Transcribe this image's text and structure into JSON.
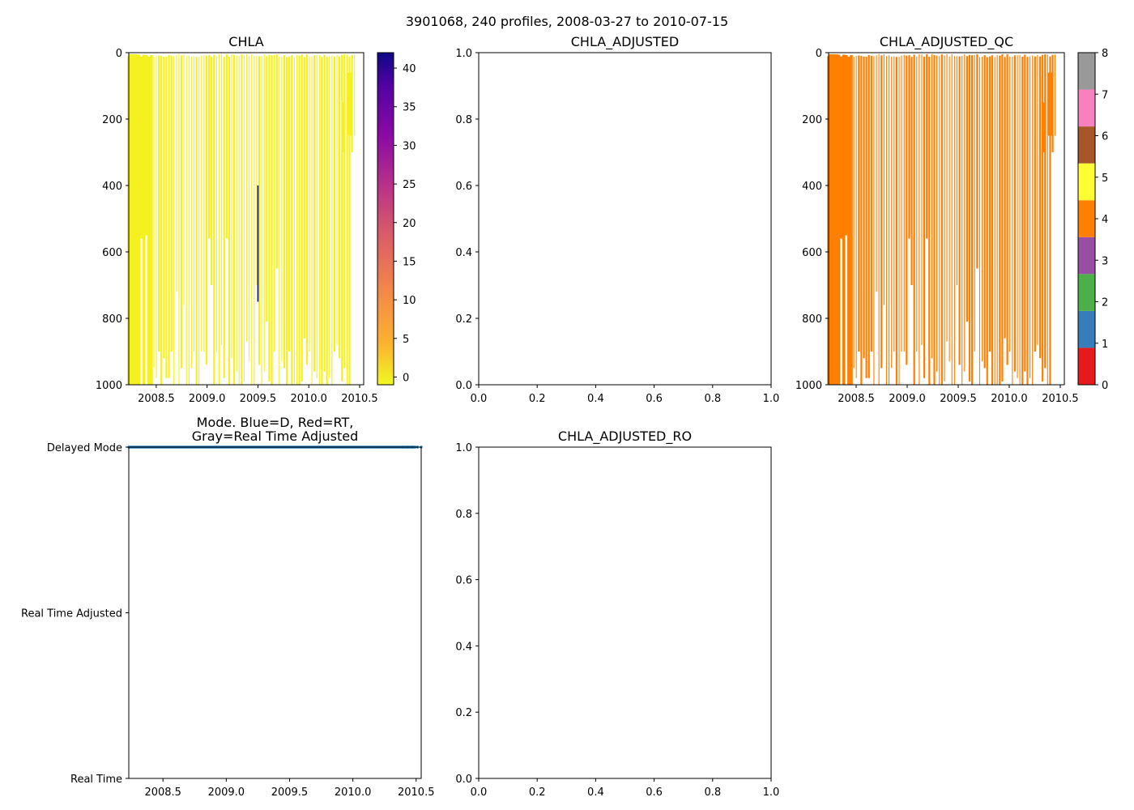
{
  "figure": {
    "suptitle": "3901068, 240 profiles, 2008-03-27 to 2010-07-15"
  },
  "colors": {
    "chla_bar": "#f5f020",
    "chla_anomaly": "#0d0887",
    "qc_bar": "#ff7f00",
    "mode_points": "#1f77b4",
    "axis": "#000000"
  },
  "chart_data": [
    {
      "id": "chla",
      "type": "heatmap",
      "title": "CHLA",
      "xlim": [
        2008.23,
        2010.54
      ],
      "ylim": [
        1000,
        0
      ],
      "xticks": [
        2008.5,
        2009.0,
        2009.5,
        2010.0,
        2010.5
      ],
      "xtick_labels": [
        "2008.5",
        "2009.0",
        "2009.5",
        "2010.0",
        "2010.5"
      ],
      "yticks": [
        0,
        200,
        400,
        600,
        800,
        1000
      ],
      "ytick_labels": [
        "0",
        "200",
        "400",
        "600",
        "800",
        "1000"
      ],
      "colorbar": {
        "min": -1,
        "max": 42,
        "ticks": [
          0,
          5,
          10,
          15,
          20,
          25,
          30,
          35,
          40
        ],
        "tick_labels": [
          "0",
          "5",
          "10",
          "15",
          "20",
          "25",
          "30",
          "35",
          "40"
        ],
        "colormap": "plasma_r"
      },
      "profile_bottoms": [
        1000,
        1000,
        950,
        1000,
        1000,
        560,
        1000,
        550,
        1000,
        1000,
        950,
        980,
        900,
        1000,
        920,
        980,
        980,
        900,
        1000,
        720,
        1000,
        950,
        760,
        1000,
        1000,
        950,
        900,
        1000,
        1000,
        900,
        900,
        940,
        560,
        700,
        1000,
        900,
        1000,
        880,
        980,
        560,
        1000,
        920,
        1000,
        960,
        1000,
        1000,
        990,
        870,
        930,
        1000,
        1000,
        700,
        940,
        1000,
        960,
        810,
        990,
        1000,
        900,
        650,
        1000,
        930,
        950,
        1000,
        900,
        1000,
        1000,
        1000,
        1000,
        990,
        860,
        940,
        900,
        1000,
        960,
        980,
        1000,
        1000,
        960,
        1000,
        980,
        1000,
        900,
        880,
        920,
        990,
        950,
        1000,
        1000,
        300,
        250
      ],
      "anomaly": {
        "x": 2009.5,
        "depth_from": 400,
        "depth_to": 750,
        "value": 42
      }
    },
    {
      "id": "chla_adjusted",
      "type": "line",
      "title": "CHLA_ADJUSTED",
      "xlim": [
        0,
        1
      ],
      "ylim": [
        0,
        1
      ],
      "xticks": [
        0,
        0.2,
        0.4,
        0.6,
        0.8,
        1.0
      ],
      "xtick_labels": [
        "0.0",
        "0.2",
        "0.4",
        "0.6",
        "0.8",
        "1.0"
      ],
      "yticks": [
        0,
        0.2,
        0.4,
        0.6,
        0.8,
        1.0
      ],
      "ytick_labels": [
        "0.0",
        "0.2",
        "0.4",
        "0.6",
        "0.8",
        "1.0"
      ],
      "series": []
    },
    {
      "id": "chla_adjusted_qc",
      "type": "heatmap",
      "title": "CHLA_ADJUSTED_QC",
      "xlim": [
        2008.23,
        2010.54
      ],
      "ylim": [
        1000,
        0
      ],
      "xticks": [
        2008.5,
        2009.0,
        2009.5,
        2010.0,
        2010.5
      ],
      "xtick_labels": [
        "2008.5",
        "2009.0",
        "2009.5",
        "2010.0",
        "2010.5"
      ],
      "yticks": [
        0,
        200,
        400,
        600,
        800,
        1000
      ],
      "ytick_labels": [
        "0",
        "200",
        "400",
        "600",
        "800",
        "1000"
      ],
      "qc_value": 4,
      "colorbar": {
        "min": 0,
        "max": 8,
        "ticks": [
          0,
          1,
          2,
          3,
          4,
          5,
          6,
          7,
          8
        ],
        "tick_labels": [
          "0",
          "1",
          "2",
          "3",
          "4",
          "5",
          "6",
          "7",
          "8"
        ],
        "class_colors": [
          "#e41a1c",
          "#377eb8",
          "#4daf4a",
          "#984ea3",
          "#ff7f00",
          "#ffff33",
          "#a65628",
          "#f781bf",
          "#999999"
        ]
      }
    },
    {
      "id": "mode",
      "type": "scatter",
      "title": "Mode. Blue=D, Red=RT,\nGray=Real Time Adjusted",
      "xlim": [
        2008.23,
        2010.54
      ],
      "ylim": [
        0,
        2
      ],
      "xticks": [
        2008.5,
        2009.0,
        2009.5,
        2010.0,
        2010.5
      ],
      "xtick_labels": [
        "2008.5",
        "2009.0",
        "2009.5",
        "2010.0",
        "2010.5"
      ],
      "yticks": [
        0,
        1,
        2
      ],
      "ytick_labels": [
        "Real Time",
        "Real Time Adjusted",
        "Delayed Mode"
      ],
      "series": [
        {
          "name": "Delayed Mode",
          "y": 2,
          "x_start": 2008.23,
          "x_end": 2010.54,
          "n_points": 240
        }
      ]
    },
    {
      "id": "chla_adjusted_ro",
      "type": "line",
      "title": "CHLA_ADJUSTED_RO",
      "xlim": [
        0,
        1
      ],
      "ylim": [
        0,
        1
      ],
      "xticks": [
        0,
        0.2,
        0.4,
        0.6,
        0.8,
        1.0
      ],
      "xtick_labels": [
        "0.0",
        "0.2",
        "0.4",
        "0.6",
        "0.8",
        "1.0"
      ],
      "yticks": [
        0,
        0.2,
        0.4,
        0.6,
        0.8,
        1.0
      ],
      "ytick_labels": [
        "0.0",
        "0.2",
        "0.4",
        "0.6",
        "0.8",
        "1.0"
      ],
      "series": []
    }
  ]
}
